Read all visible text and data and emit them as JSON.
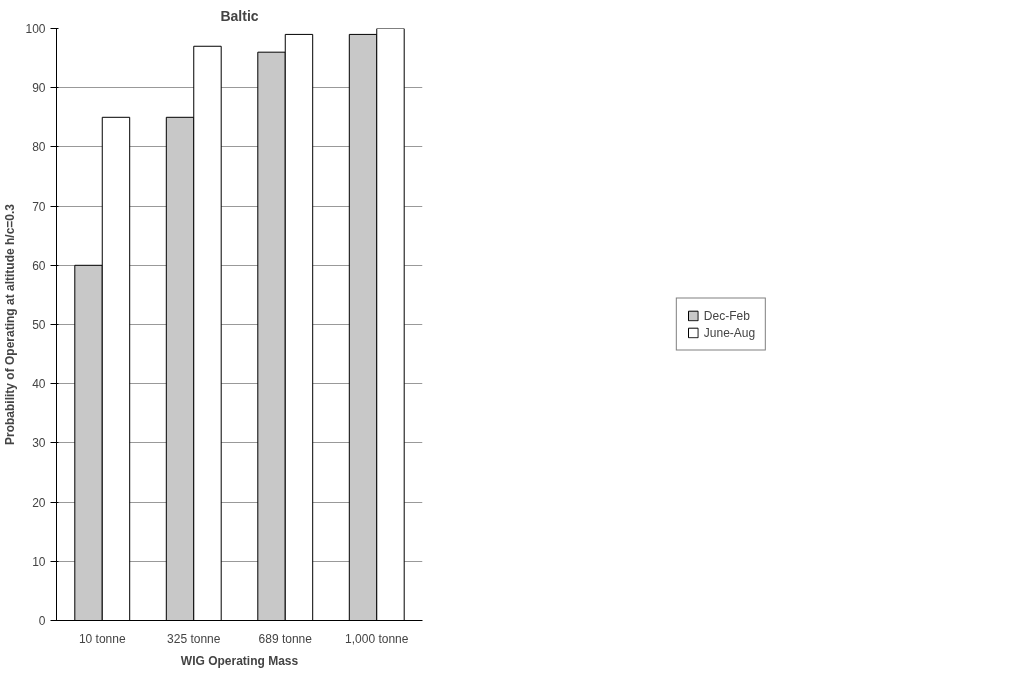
{
  "chart_data": {
    "type": "bar",
    "title": "Baltic",
    "xlabel": "WIG Operating Mass",
    "ylabel": "Probability of Operating at altitude h/c=0.3",
    "categories": [
      "10 tonne",
      "325 tonne",
      "689 tonne",
      "1,000 tonne"
    ],
    "series": [
      {
        "name": "Dec-Feb",
        "color": "#c8c8c8",
        "values": [
          60,
          85,
          96,
          99
        ]
      },
      {
        "name": "June-Aug",
        "color": "#ffffff",
        "values": [
          85,
          97,
          99,
          100
        ]
      }
    ],
    "ylim": [
      0,
      100
    ],
    "yticks": [
      0,
      10,
      20,
      30,
      40,
      50,
      60,
      70,
      80,
      90,
      100
    ],
    "grid": "y",
    "legend": "right"
  }
}
